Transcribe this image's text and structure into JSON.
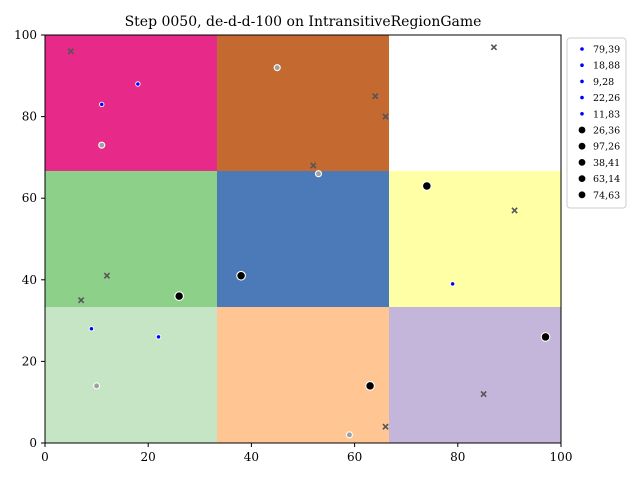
{
  "chart_data": {
    "type": "scatter",
    "title": "Step 0050, de-d-d-100 on IntransitiveRegionGame",
    "xlabel": "",
    "ylabel": "",
    "xlim": [
      0,
      100
    ],
    "ylim": [
      0,
      100
    ],
    "x_ticks": [
      0,
      20,
      40,
      60,
      80,
      100
    ],
    "y_ticks": [
      0,
      20,
      40,
      60,
      80,
      100
    ],
    "grid": false,
    "legend_position": "right-outside-top",
    "regions": [
      {
        "x": [
          0,
          33.33
        ],
        "y": [
          66.67,
          100
        ],
        "color": "#e7298a"
      },
      {
        "x": [
          33.33,
          66.67
        ],
        "y": [
          66.67,
          100
        ],
        "color": "#c46a30"
      },
      {
        "x": [
          66.67,
          100
        ],
        "y": [
          66.67,
          100
        ],
        "color": "#ffffff"
      },
      {
        "x": [
          0,
          33.33
        ],
        "y": [
          33.33,
          66.67
        ],
        "color": "#8dd08a"
      },
      {
        "x": [
          33.33,
          66.67
        ],
        "y": [
          33.33,
          66.67
        ],
        "color": "#4c7ab8"
      },
      {
        "x": [
          66.67,
          100
        ],
        "y": [
          33.33,
          66.67
        ],
        "color": "#ffffa6"
      },
      {
        "x": [
          0,
          33.33
        ],
        "y": [
          0,
          33.33
        ],
        "color": "#c6e5c5"
      },
      {
        "x": [
          33.33,
          66.67
        ],
        "y": [
          0,
          33.33
        ],
        "color": "#ffc693"
      },
      {
        "x": [
          66.67,
          100
        ],
        "y": [
          0,
          33.33
        ],
        "color": "#c4b5da"
      }
    ],
    "legend": [
      {
        "label": "79,39",
        "marker": "small-blue"
      },
      {
        "label": "18,88",
        "marker": "small-blue"
      },
      {
        "label": "9,28",
        "marker": "small-blue"
      },
      {
        "label": "22,26",
        "marker": "small-blue"
      },
      {
        "label": "11,83",
        "marker": "small-blue"
      },
      {
        "label": "26,36",
        "marker": "large-black"
      },
      {
        "label": "97,26",
        "marker": "large-black"
      },
      {
        "label": "38,41",
        "marker": "large-black"
      },
      {
        "label": "63,14",
        "marker": "large-black"
      },
      {
        "label": "74,63",
        "marker": "large-black"
      }
    ],
    "small_blue_points": [
      {
        "x": 79,
        "y": 39
      },
      {
        "x": 18,
        "y": 88
      },
      {
        "x": 9,
        "y": 28
      },
      {
        "x": 22,
        "y": 26
      },
      {
        "x": 11,
        "y": 83
      }
    ],
    "large_black_points": [
      {
        "x": 26,
        "y": 36
      },
      {
        "x": 97,
        "y": 26
      },
      {
        "x": 38,
        "y": 41
      },
      {
        "x": 63,
        "y": 14
      },
      {
        "x": 74,
        "y": 63
      }
    ],
    "gray_circle_points": [
      {
        "x": 11,
        "y": 73
      },
      {
        "x": 45,
        "y": 92
      },
      {
        "x": 53,
        "y": 66
      },
      {
        "x": 10,
        "y": 14
      },
      {
        "x": 59,
        "y": 2
      }
    ],
    "gray_x_points": [
      {
        "x": 5,
        "y": 96
      },
      {
        "x": 87,
        "y": 97
      },
      {
        "x": 64,
        "y": 85
      },
      {
        "x": 66,
        "y": 80
      },
      {
        "x": 52,
        "y": 68
      },
      {
        "x": 91,
        "y": 57
      },
      {
        "x": 12,
        "y": 41
      },
      {
        "x": 7,
        "y": 35
      },
      {
        "x": 85,
        "y": 12
      },
      {
        "x": 66,
        "y": 4
      }
    ],
    "colors": {
      "small_blue_fill": "#0000ff",
      "large_black_fill": "#000000",
      "gray_marker": "#a0a0a0",
      "x_marker": "#555555"
    }
  }
}
